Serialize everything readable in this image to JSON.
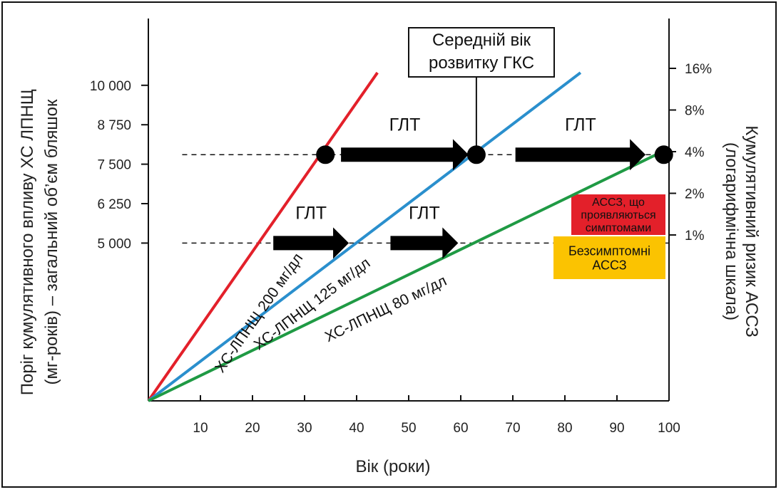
{
  "chart_data": {
    "type": "line",
    "xlabel": "Вік (роки)",
    "ylabel_left_line1": "Поріг кумулятивного впливу ХС ЛПНЩ",
    "ylabel_left_line2": "(мг-років) – загальний об’єм бляшок",
    "ylabel_right_line1": "Кумулятивний ризик АССЗ",
    "ylabel_right_line2": "(логарифмічна шкала)",
    "x_ticks": [
      10,
      20,
      30,
      40,
      50,
      60,
      70,
      80,
      90,
      100
    ],
    "x_tick_labels": [
      "10",
      "20",
      "30",
      "40",
      "50",
      "60",
      "70",
      "80",
      "90",
      "100"
    ],
    "xlim": [
      0,
      100
    ],
    "y_left_ticks": [
      5000,
      6250,
      7500,
      8750,
      10000
    ],
    "y_left_tick_labels": [
      "5 000",
      "6 250",
      "7 500",
      "8 750",
      "10 000"
    ],
    "y_right_ticks": [
      1,
      2,
      4,
      8,
      16
    ],
    "y_right_tick_labels": [
      "1%",
      "2%",
      "4%",
      "8%",
      "16%"
    ],
    "series": [
      {
        "name": "ХС-ЛПНЩ 200 мг/дл",
        "color": "#e3202a",
        "x": [
          0,
          44
        ],
        "y": [
          0,
          10400
        ]
      },
      {
        "name": "ХС-ЛПНЩ 125 мг/дл",
        "color": "#2a8fcd",
        "x": [
          0,
          83
        ],
        "y": [
          0,
          10400
        ]
      },
      {
        "name": "ХС-ЛПНЩ 80 мг/дл",
        "color": "#1f9a44",
        "x": [
          0,
          97.5
        ],
        "y": [
          0,
          7800
        ]
      }
    ],
    "threshold_lines": [
      {
        "y": 7800,
        "x_start": 6.5,
        "x_end": 100,
        "style": "dashed"
      },
      {
        "y": 5000,
        "x_start": 6.5,
        "x_end": 100,
        "style": "dashed"
      }
    ],
    "event_points": [
      {
        "x": 34,
        "y": 7800
      },
      {
        "x": 63,
        "y": 7800
      },
      {
        "x": 99,
        "y": 7800
      }
    ],
    "arrows": [
      {
        "label": "ГЛТ",
        "x_start": 37,
        "x_end": 61.5,
        "y": 7800
      },
      {
        "label": "ГЛТ",
        "x_start": 70.5,
        "x_end": 95.5,
        "y": 7800
      },
      {
        "label": "ГЛТ",
        "x_start": 24,
        "x_end": 38.5,
        "y": 5000
      },
      {
        "label": "ГЛТ",
        "x_start": 46.5,
        "x_end": 59.5,
        "y": 5000
      }
    ],
    "callout": {
      "line1": "Середній вік",
      "line2": "розвитку ГКС",
      "x": 63
    },
    "risk_boxes": [
      {
        "lines": [
          "АССЗ, що",
          "проявляються",
          "симптомами"
        ],
        "color": "#e3202a"
      },
      {
        "lines": [
          "Безсимптомні",
          "АССЗ"
        ],
        "color": "#fbc301"
      }
    ],
    "grid": false,
    "legend": "none"
  }
}
